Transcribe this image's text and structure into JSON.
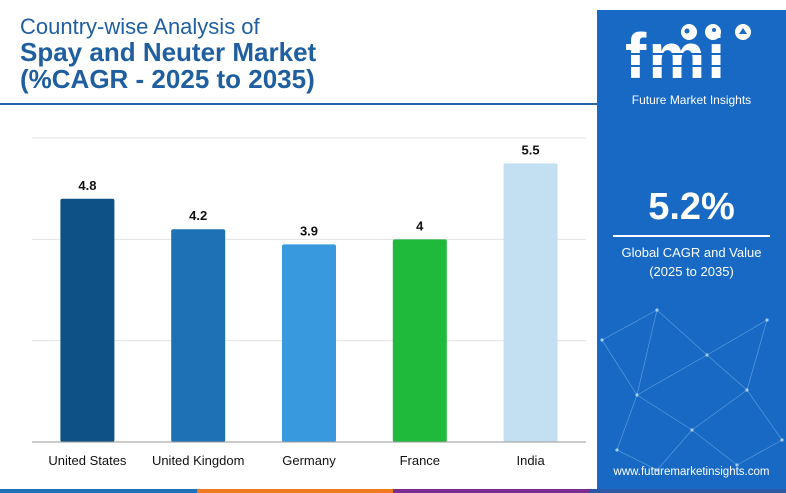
{
  "header": {
    "line1": "Country-wise Analysis of",
    "line2": "Spay and Neuter Market",
    "line3": "(%CAGR - 2025 to 2035)"
  },
  "chart_data": {
    "type": "bar",
    "categories": [
      "United States",
      "United Kingdom",
      "Germany",
      "France",
      "India"
    ],
    "values": [
      4.8,
      4.2,
      3.9,
      4,
      5.5
    ],
    "colors": [
      "#0d5186",
      "#1d71b4",
      "#3899de",
      "#1fb93c",
      "#c3e0f3"
    ],
    "ylim": [
      0,
      6
    ],
    "grid": true,
    "data_labels": [
      "4.8",
      "4.2",
      "3.9",
      "4",
      "5.5"
    ]
  },
  "panel": {
    "logo_text": "fmi",
    "logo_subtitle": "Future Market Insights",
    "kpi_value": "5.2%",
    "kpi_label_line1": "Global CAGR and Value",
    "kpi_label_line2": "(2025 to 2035)",
    "website": "www.futuremarketinsights.com",
    "bg_color": "#1769c4"
  },
  "strip_colors": [
    "#1d71b4",
    "#f07a22",
    "#7b2c8f",
    "#2f57a8"
  ]
}
